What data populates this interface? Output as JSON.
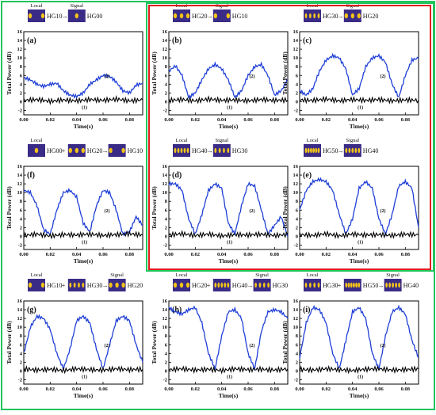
{
  "colors": {
    "blue": "#1f3fd6",
    "black": "#000000",
    "green": "#22c55e",
    "red": "#e11d1d",
    "modeBg": "#3a2b86",
    "modeBlob": "#f2c318"
  },
  "chart_data": [
    {
      "id": "a",
      "type": "line",
      "panel_label": "(a)",
      "header": [
        {
          "label": "Local",
          "mode": "HG10"
        },
        {
          "label": "Signal",
          "mode": "HG00"
        }
      ],
      "header_text": [
        "HG10",
        "→",
        "HG00"
      ],
      "xlabel": "Time(s)",
      "ylabel": "Total Power (dB)",
      "xlim": [
        0,
        0.09
      ],
      "ylim": [
        -3,
        16
      ],
      "xticks": [
        "0.00",
        "0.02",
        "0.04",
        "0.06",
        "0.08"
      ],
      "yticks": [
        "-2",
        "0",
        "2",
        "4",
        "6",
        "8",
        "10",
        "12",
        "14",
        "16"
      ],
      "series": [
        {
          "label": "(2)",
          "x": [
            0,
            0.005,
            0.01,
            0.015,
            0.02,
            0.025,
            0.03,
            0.035,
            0.04,
            0.045,
            0.05,
            0.055,
            0.06,
            0.065,
            0.07,
            0.075,
            0.08,
            0.085,
            0.09
          ],
          "y": [
            5.5,
            5.0,
            4.0,
            3.5,
            4.0,
            4.2,
            2.5,
            1.5,
            1.2,
            2.0,
            4.0,
            5.0,
            6.0,
            5.8,
            4.5,
            2.5,
            2.0,
            3.8,
            4.2
          ]
        },
        {
          "label": "(1)",
          "x": [
            0,
            0.01,
            0.02,
            0.03,
            0.04,
            0.05,
            0.06,
            0.07,
            0.08,
            0.09
          ],
          "y": [
            0.3,
            0.5,
            0.1,
            0.4,
            0.2,
            0.5,
            0.3,
            0.6,
            0.2,
            0.4
          ]
        }
      ]
    },
    {
      "id": "b",
      "type": "line",
      "panel_label": "(b)",
      "header": [
        {
          "label": "Local",
          "mode": "HG20"
        },
        {
          "label": "Signal",
          "mode": "HG10"
        }
      ],
      "header_text": [
        "HG20",
        "→",
        "HG10"
      ],
      "xlabel": "Time(s)",
      "ylabel": "Total Power (dB)",
      "xlim": [
        0,
        0.09
      ],
      "ylim": [
        -3,
        16
      ],
      "xticks": [
        "0.00",
        "0.02",
        "0.04",
        "0.06",
        "0.08"
      ],
      "yticks": [
        "-2",
        "0",
        "2",
        "4",
        "6",
        "8",
        "10",
        "12",
        "14",
        "16"
      ],
      "series": [
        {
          "label": "(2)",
          "x": [
            0,
            0.005,
            0.01,
            0.015,
            0.02,
            0.025,
            0.03,
            0.035,
            0.04,
            0.045,
            0.05,
            0.055,
            0.06,
            0.065,
            0.07,
            0.075,
            0.08,
            0.085,
            0.09
          ],
          "y": [
            7.0,
            8.2,
            6.0,
            1.0,
            2.0,
            5.0,
            7.5,
            8.5,
            7.5,
            5.0,
            1.0,
            2.5,
            6.0,
            8.0,
            8.5,
            6.0,
            1.5,
            2.5,
            5.0
          ]
        },
        {
          "label": "(1)",
          "x": [
            0,
            0.01,
            0.02,
            0.03,
            0.04,
            0.05,
            0.06,
            0.07,
            0.08,
            0.09
          ],
          "y": [
            0.3,
            0.5,
            0.2,
            0.6,
            0.3,
            0.4,
            0.2,
            0.5,
            0.3,
            0.4
          ]
        }
      ]
    },
    {
      "id": "c",
      "type": "line",
      "panel_label": "(c)",
      "header": [
        {
          "label": "Local",
          "mode": "HG30"
        },
        {
          "label": "Signal",
          "mode": "HG20"
        }
      ],
      "header_text": [
        "HG30",
        "→",
        "HG20"
      ],
      "xlabel": "Time(s)",
      "ylabel": "Total Power (dB)",
      "xlim": [
        0,
        0.09
      ],
      "ylim": [
        -3,
        16
      ],
      "xticks": [
        "0.00",
        "0.02",
        "0.04",
        "0.06",
        "0.08"
      ],
      "yticks": [
        "-2",
        "0",
        "2",
        "4",
        "6",
        "8",
        "10",
        "12",
        "14",
        "16"
      ],
      "series": [
        {
          "label": "(2)",
          "x": [
            0,
            0.005,
            0.01,
            0.015,
            0.02,
            0.025,
            0.03,
            0.035,
            0.04,
            0.045,
            0.05,
            0.055,
            0.06,
            0.065,
            0.07,
            0.075,
            0.08,
            0.085,
            0.09
          ],
          "y": [
            2.5,
            1.5,
            3.0,
            7.0,
            9.5,
            10.5,
            10.0,
            7.5,
            1.5,
            3.0,
            8.0,
            10.0,
            10.5,
            9.0,
            4.0,
            1.0,
            6.0,
            9.5,
            10.0
          ]
        },
        {
          "label": "(1)",
          "x": [
            0,
            0.01,
            0.02,
            0.03,
            0.04,
            0.05,
            0.06,
            0.07,
            0.08,
            0.09
          ],
          "y": [
            0.4,
            0.3,
            0.6,
            0.2,
            0.5,
            0.3,
            0.5,
            0.2,
            0.4,
            0.3
          ]
        }
      ]
    },
    {
      "id": "f",
      "type": "line",
      "panel_label": "(f)",
      "header": [
        {
          "label": "Local",
          "mode": "HG00"
        },
        {
          "label": "",
          "mode": "HG20"
        },
        {
          "label": "",
          "mode": "HG10"
        }
      ],
      "header_text": [
        "HG00",
        "+",
        "HG20",
        "→",
        "HG10"
      ],
      "xlabel": "Time(s)",
      "ylabel": "Total Power (dB)",
      "xlim": [
        0,
        0.09
      ],
      "ylim": [
        -3,
        16
      ],
      "xticks": [
        "0.00",
        "0.02",
        "0.04",
        "0.06",
        "0.08"
      ],
      "yticks": [
        "-2",
        "0",
        "2",
        "4",
        "6",
        "8",
        "10",
        "12",
        "14",
        "16"
      ],
      "series": [
        {
          "label": "(2)",
          "x": [
            0,
            0.005,
            0.01,
            0.015,
            0.02,
            0.025,
            0.03,
            0.035,
            0.04,
            0.045,
            0.05,
            0.055,
            0.06,
            0.065,
            0.07,
            0.075,
            0.08,
            0.085,
            0.09
          ],
          "y": [
            10.5,
            10.0,
            7.0,
            1.5,
            0.5,
            6.0,
            10.0,
            10.5,
            9.0,
            3.0,
            1.0,
            7.0,
            10.5,
            10.0,
            6.0,
            0.5,
            1.0,
            4.5,
            2.5
          ]
        },
        {
          "label": "(1)",
          "x": [
            0,
            0.01,
            0.02,
            0.03,
            0.04,
            0.05,
            0.06,
            0.07,
            0.08,
            0.09
          ],
          "y": [
            0.2,
            0.5,
            0.1,
            0.4,
            0.3,
            0.5,
            0.2,
            0.4,
            0.6,
            0.3
          ]
        }
      ]
    },
    {
      "id": "d",
      "type": "line",
      "panel_label": "(d)",
      "header": [
        {
          "label": "Local",
          "mode": "HG40"
        },
        {
          "label": "Signal",
          "mode": "HG30"
        }
      ],
      "header_text": [
        "HG40",
        "→",
        "HG30"
      ],
      "xlabel": "Time(s)",
      "ylabel": "Total Power (dB)",
      "xlim": [
        0,
        0.09
      ],
      "ylim": [
        -3,
        16
      ],
      "xticks": [
        "0.00",
        "0.02",
        "0.04",
        "0.06",
        "0.08"
      ],
      "yticks": [
        "-2",
        "0",
        "2",
        "4",
        "6",
        "8",
        "10",
        "12",
        "14",
        "16"
      ],
      "series": [
        {
          "label": "(2)",
          "x": [
            0,
            0.005,
            0.01,
            0.015,
            0.02,
            0.025,
            0.03,
            0.035,
            0.04,
            0.045,
            0.05,
            0.055,
            0.06,
            0.065,
            0.07,
            0.075,
            0.08,
            0.085,
            0.09
          ],
          "y": [
            12.0,
            12.0,
            10.5,
            4.0,
            0.5,
            5.0,
            10.5,
            12.0,
            11.0,
            3.0,
            0.5,
            7.0,
            12.0,
            11.5,
            6.0,
            0.5,
            2.5,
            4.5,
            0.0
          ]
        },
        {
          "label": "(1)",
          "x": [
            0,
            0.01,
            0.02,
            0.03,
            0.04,
            0.05,
            0.06,
            0.07,
            0.08,
            0.09
          ],
          "y": [
            0.3,
            0.6,
            0.2,
            0.5,
            0.1,
            0.4,
            0.3,
            0.5,
            0.2,
            0.4
          ]
        }
      ]
    },
    {
      "id": "e",
      "type": "line",
      "panel_label": "(e)",
      "header": [
        {
          "label": "Local",
          "mode": "HG50"
        },
        {
          "label": "Signal",
          "mode": "HG40"
        }
      ],
      "header_text": [
        "HG50",
        "→",
        "HG40"
      ],
      "xlabel": "Time(s)",
      "ylabel": "Total Power (dB)",
      "xlim": [
        0,
        0.09
      ],
      "ylim": [
        -3,
        16
      ],
      "xticks": [
        "0.00",
        "0.02",
        "0.04",
        "0.06",
        "0.08"
      ],
      "yticks": [
        "-2",
        "0",
        "2",
        "4",
        "6",
        "8",
        "10",
        "12",
        "14",
        "16"
      ],
      "series": [
        {
          "label": "(2)",
          "x": [
            0,
            0.005,
            0.01,
            0.015,
            0.02,
            0.025,
            0.03,
            0.035,
            0.04,
            0.045,
            0.05,
            0.055,
            0.06,
            0.065,
            0.07,
            0.075,
            0.08,
            0.085,
            0.09
          ],
          "y": [
            6.0,
            10.5,
            12.5,
            13.0,
            12.5,
            10.5,
            5.0,
            0.5,
            4.0,
            11.0,
            12.5,
            11.0,
            4.0,
            0.5,
            5.0,
            11.5,
            12.5,
            11.0,
            2.0
          ]
        },
        {
          "label": "(1)",
          "x": [
            0,
            0.01,
            0.02,
            0.03,
            0.04,
            0.05,
            0.06,
            0.07,
            0.08,
            0.09
          ],
          "y": [
            0.4,
            0.2,
            0.6,
            0.1,
            0.5,
            0.3,
            0.4,
            0.2,
            0.5,
            0.3
          ]
        }
      ]
    },
    {
      "id": "g",
      "type": "line",
      "panel_label": "(g)",
      "header": [
        {
          "label": "Local",
          "mode": "HG10"
        },
        {
          "label": "",
          "mode": "HG30"
        },
        {
          "label": "Signal",
          "mode": "HG20"
        }
      ],
      "header_text": [
        "HG10",
        "+",
        "HG30",
        "→",
        "HG20"
      ],
      "xlabel": "Time(s)",
      "ylabel": "Total Power (dB)",
      "xlim": [
        0,
        0.09
      ],
      "ylim": [
        -3,
        16
      ],
      "xticks": [
        "0.00",
        "0.02",
        "0.04",
        "0.06",
        "0.08"
      ],
      "yticks": [
        "-2",
        "0",
        "2",
        "4",
        "6",
        "8",
        "10",
        "12",
        "14",
        "16"
      ],
      "series": [
        {
          "label": "(2)",
          "x": [
            0,
            0.005,
            0.01,
            0.015,
            0.02,
            0.025,
            0.03,
            0.035,
            0.04,
            0.045,
            0.05,
            0.055,
            0.06,
            0.065,
            0.07,
            0.075,
            0.08,
            0.085,
            0.09
          ],
          "y": [
            4.0,
            10.0,
            12.5,
            12.0,
            9.5,
            4.0,
            0.5,
            5.0,
            11.5,
            12.5,
            11.0,
            5.0,
            0.5,
            6.0,
            11.5,
            12.5,
            11.5,
            6.0,
            2.0
          ]
        },
        {
          "label": "(1)",
          "x": [
            0,
            0.01,
            0.02,
            0.03,
            0.04,
            0.05,
            0.06,
            0.07,
            0.08,
            0.09
          ],
          "y": [
            0.5,
            0.2,
            0.4,
            0.1,
            0.5,
            0.3,
            0.2,
            0.5,
            0.3,
            0.4
          ]
        }
      ]
    },
    {
      "id": "h",
      "type": "line",
      "panel_label": "(h)",
      "header": [
        {
          "label": "Local",
          "mode": "HG20"
        },
        {
          "label": "",
          "mode": "HG40"
        },
        {
          "label": "Signal",
          "mode": "HG30"
        }
      ],
      "header_text": [
        "HG20",
        "+",
        "HG40",
        "→",
        "HG30"
      ],
      "xlabel": "Time(s)",
      "ylabel": "Total Power (dB)",
      "xlim": [
        0,
        0.09
      ],
      "ylim": [
        -3,
        16
      ],
      "xticks": [
        "0.00",
        "0.02",
        "0.04",
        "0.06",
        "0.08"
      ],
      "yticks": [
        "-2",
        "0",
        "2",
        "4",
        "6",
        "8",
        "10",
        "12",
        "14",
        "16"
      ],
      "series": [
        {
          "label": "(2)",
          "x": [
            0,
            0.005,
            0.01,
            0.015,
            0.02,
            0.025,
            0.03,
            0.035,
            0.04,
            0.045,
            0.05,
            0.055,
            0.06,
            0.065,
            0.07,
            0.075,
            0.08,
            0.085,
            0.09
          ],
          "y": [
            14.5,
            13.5,
            13.0,
            14.0,
            14.5,
            11.0,
            4.0,
            0.5,
            8.0,
            13.5,
            14.0,
            12.0,
            4.0,
            0.5,
            9.0,
            13.5,
            14.0,
            13.5,
            12.0
          ]
        },
        {
          "label": "(1)",
          "x": [
            0,
            0.01,
            0.02,
            0.03,
            0.04,
            0.05,
            0.06,
            0.07,
            0.08,
            0.09
          ],
          "y": [
            0.3,
            0.5,
            0.2,
            0.4,
            0.1,
            0.5,
            0.3,
            0.4,
            0.2,
            0.5
          ]
        }
      ]
    },
    {
      "id": "i",
      "type": "line",
      "panel_label": "(i)",
      "header": [
        {
          "label": "Local",
          "mode": "HG30"
        },
        {
          "label": "",
          "mode": "HG50"
        },
        {
          "label": "Signal",
          "mode": "HG40"
        }
      ],
      "header_text": [
        "HG30",
        "+",
        "HG50",
        "→",
        "HG40"
      ],
      "xlabel": "Time(s)",
      "ylabel": "Total Power (dB)",
      "xlim": [
        0,
        0.09
      ],
      "ylim": [
        -3,
        16
      ],
      "xticks": [
        "0.00",
        "0.02",
        "0.04",
        "0.06",
        "0.08"
      ],
      "yticks": [
        "-2",
        "0",
        "2",
        "4",
        "6",
        "8",
        "10",
        "12",
        "14",
        "16"
      ],
      "series": [
        {
          "label": "(2)",
          "x": [
            0,
            0.005,
            0.01,
            0.015,
            0.02,
            0.025,
            0.03,
            0.035,
            0.04,
            0.045,
            0.05,
            0.055,
            0.06,
            0.065,
            0.07,
            0.075,
            0.08,
            0.085,
            0.09
          ],
          "y": [
            3.0,
            11.0,
            14.5,
            14.0,
            11.0,
            4.0,
            0.5,
            7.0,
            13.5,
            14.5,
            12.0,
            4.0,
            0.5,
            8.0,
            13.5,
            14.5,
            13.0,
            7.0,
            3.0
          ]
        },
        {
          "label": "(1)",
          "x": [
            0,
            0.01,
            0.02,
            0.03,
            0.04,
            0.05,
            0.06,
            0.07,
            0.08,
            0.09
          ],
          "y": [
            0.4,
            0.2,
            0.5,
            0.3,
            0.1,
            0.4,
            0.5,
            0.2,
            0.3,
            0.5
          ]
        }
      ]
    }
  ]
}
